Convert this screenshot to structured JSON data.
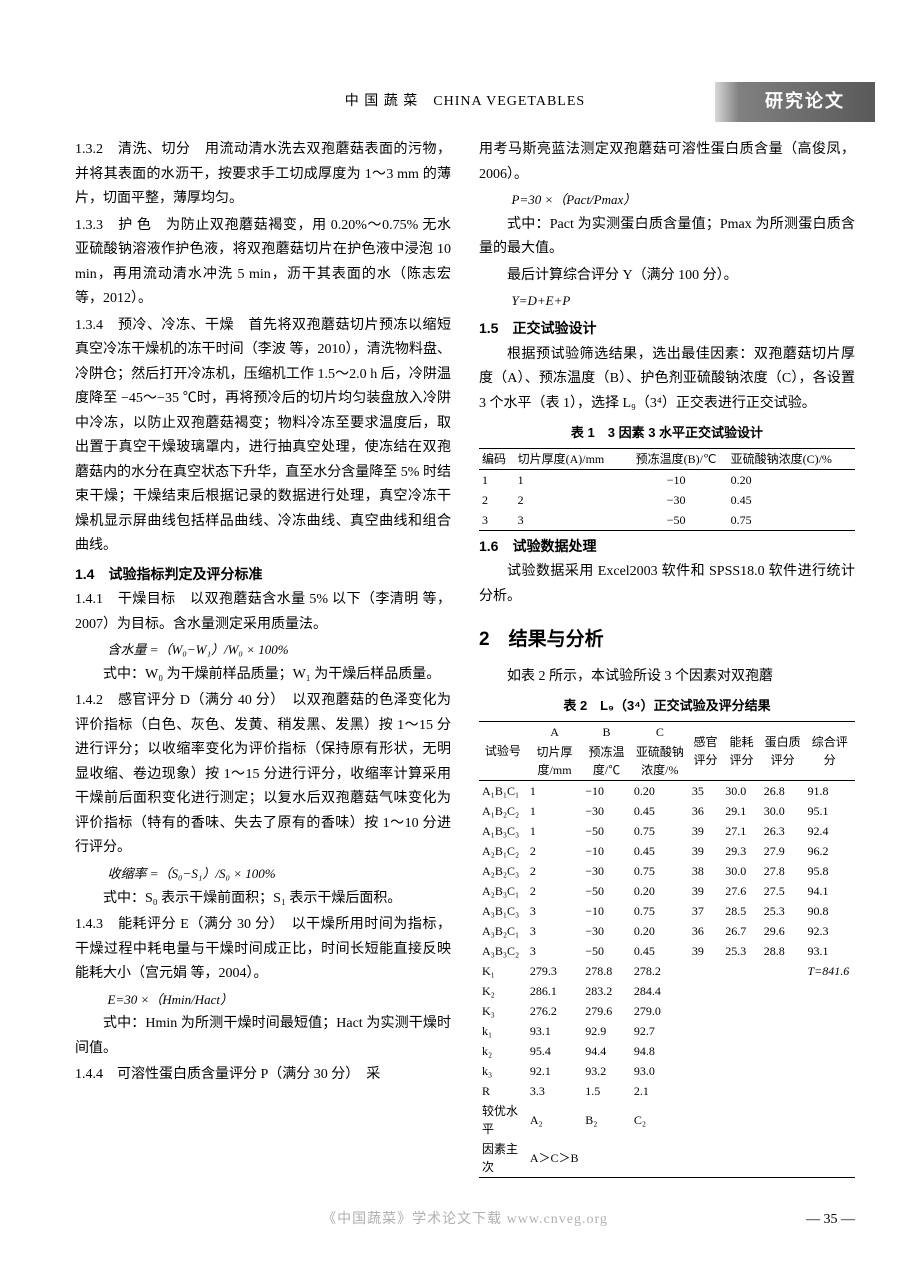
{
  "header": {
    "journal": "中 国 蔬 菜　CHINA VEGETABLES",
    "badge": "研究论文"
  },
  "left": {
    "p1_3_2": "1.3.2　清洗、切分　用流动清水洗去双孢蘑菇表面的污物，并将其表面的水沥干，按要求手工切成厚度为 1～3 mm 的薄片，切面平整，薄厚均匀。",
    "p1_3_3": "1.3.3　护 色　为防止双孢蘑菇褐变，用 0.20%～0.75% 无水亚硫酸钠溶液作护色液，将双孢蘑菇切片在护色液中浸泡 10 min，再用流动清水冲洗 5 min，沥干其表面的水（陈志宏 等，2012）。",
    "p1_3_4": "1.3.4　预冷、冷冻、干燥　首先将双孢蘑菇切片预冻以缩短真空冷冻干燥机的冻干时间（李波 等，2010），清洗物料盘、冷阱仓；然后打开冷冻机，压缩机工作 1.5～2.0 h 后，冷阱温度降至 −45～−35 ℃时，再将预冷后的切片均匀装盘放入冷阱中冷冻，以防止双孢蘑菇褐变；物料冷冻至要求温度后，取出置于真空干燥玻璃罩内，进行抽真空处理，使冻结在双孢蘑菇内的水分在真空状态下升华，直至水分含量降至 5% 时结束干燥；干燥结束后根据记录的数据进行处理，真空冷冻干燥机显示屏曲线包括样品曲线、冷冻曲线、真空曲线和组合曲线。",
    "h1_4": "1.4　试验指标判定及评分标准",
    "p1_4_1a": "1.4.1　干燥目标　以双孢蘑菇含水量 5% 以下（李清明 等，2007）为目标。含水量测定采用质量法。",
    "f1": "含水量 =（W₀−W₁）/W₀ × 100%",
    "p1_4_1b": "式中：W₀ 为干燥前样品质量；W₁ 为干燥后样品质量。",
    "p1_4_2a": "1.4.2　感官评分 D（满分 40 分）　以双孢蘑菇的色泽变化为评价指标（白色、灰色、发黄、稍发黑、发黑）按 1～15 分进行评分；以收缩率变化为评价指标（保持原有形状，无明显收缩、卷边现象）按 1～15 分进行评分，收缩率计算采用干燥前后面积变化进行测定；以复水后双孢蘑菇气味变化为评价指标（特有的香味、失去了原有的香味）按 1～10 分进行评分。",
    "f2": "收缩率 =（S₀−S₁）/S₀ × 100%",
    "p1_4_2b": "式中：S₀ 表示干燥前面积；S₁ 表示干燥后面积。",
    "p1_4_3a": "1.4.3　能耗评分 E（满分 30 分）　以干燥所用时间为指标，干燥过程中耗电量与干燥时间成正比，时间长短能直接反映能耗大小（宫元娟 等，2004）。",
    "f3": "E=30 ×（Hmin/Hact）",
    "p1_4_3b": "式中：Hmin 为所测干燥时间最短值；Hact 为实测干燥时间值。",
    "p1_4_4": "1.4.4　可溶性蛋白质含量评分 P（满分 30 分）　采"
  },
  "right": {
    "p_cont": "用考马斯亮蓝法测定双孢蘑菇可溶性蛋白质含量（高俊凤，2006）。",
    "fP": "P=30 ×（Pact/Pmax）",
    "p_expl": "式中：Pact 为实测蛋白质含量值；Pmax 为所测蛋白质含量的最大值。",
    "p_Y": "最后计算综合评分 Y（满分 100 分）。",
    "fY": "Y=D+E+P",
    "h1_5": "1.5　正交试验设计",
    "p1_5": "根据预试验筛选结果，选出最佳因素：双孢蘑菇切片厚度（A）、预冻温度（B）、护色剂亚硫酸钠浓度（C），各设置 3 个水平（表 1），选择 L₉（3⁴）正交表进行正交试验。",
    "t1_caption": "表 1　3 因素 3 水平正交试验设计",
    "t1": {
      "headers": [
        "编码",
        "切片厚度(A)/mm",
        "预冻温度(B)/℃",
        "亚硫酸钠浓度(C)/%"
      ],
      "rows": [
        [
          "1",
          "1",
          "−10",
          "0.20"
        ],
        [
          "2",
          "2",
          "−30",
          "0.45"
        ],
        [
          "3",
          "3",
          "−50",
          "0.75"
        ]
      ]
    },
    "h1_6": "1.6　试验数据处理",
    "p1_6": "试验数据采用 Excel2003 软件和 SPSS18.0 软件进行统计分析。",
    "h2": "2　结果与分析",
    "p2_intro": "如表 2 所示，本试验所设 3 个因素对双孢蘑",
    "t2_caption": "表 2　L₉（3⁴）正交试验及评分结果",
    "t2": {
      "top_headers": [
        "",
        "A",
        "B",
        "C",
        "",
        "",
        "",
        ""
      ],
      "sub_left": "试验号",
      "sub_headers": [
        "切片厚度/mm",
        "预冻温度/℃",
        "亚硫酸钠浓度/%",
        "感官评分",
        "能耗评分",
        "蛋白质评分",
        "综合评分"
      ],
      "rows": [
        [
          "A₁B₁C₁",
          "1",
          "−10",
          "0.20",
          "35",
          "30.0",
          "26.8",
          "91.8"
        ],
        [
          "A₁B₂C₂",
          "1",
          "−30",
          "0.45",
          "36",
          "29.1",
          "30.0",
          "95.1"
        ],
        [
          "A₁B₃C₃",
          "1",
          "−50",
          "0.75",
          "39",
          "27.1",
          "26.3",
          "92.4"
        ],
        [
          "A₂B₁C₂",
          "2",
          "−10",
          "0.45",
          "39",
          "29.3",
          "27.9",
          "96.2"
        ],
        [
          "A₂B₂C₃",
          "2",
          "−30",
          "0.75",
          "38",
          "30.0",
          "27.8",
          "95.8"
        ],
        [
          "A₂B₃C₁",
          "2",
          "−50",
          "0.20",
          "39",
          "27.6",
          "27.5",
          "94.1"
        ],
        [
          "A₃B₁C₃",
          "3",
          "−10",
          "0.75",
          "37",
          "28.5",
          "25.3",
          "90.8"
        ],
        [
          "A₃B₂C₁",
          "3",
          "−30",
          "0.20",
          "36",
          "26.7",
          "29.6",
          "92.3"
        ],
        [
          "A₃B₃C₂",
          "3",
          "−50",
          "0.45",
          "39",
          "25.3",
          "28.8",
          "93.1"
        ]
      ],
      "stats": [
        [
          "K₁",
          "279.3",
          "278.8",
          "278.2",
          "",
          "",
          "",
          "T=841.6"
        ],
        [
          "K₂",
          "286.1",
          "283.2",
          "284.4",
          "",
          "",
          "",
          ""
        ],
        [
          "K₃",
          "276.2",
          "279.6",
          "279.0",
          "",
          "",
          "",
          ""
        ],
        [
          "k₁",
          "93.1",
          "92.9",
          "92.7",
          "",
          "",
          "",
          ""
        ],
        [
          "k₂",
          "95.4",
          "94.4",
          "94.8",
          "",
          "",
          "",
          ""
        ],
        [
          "k₃",
          "92.1",
          "93.2",
          "93.0",
          "",
          "",
          "",
          ""
        ],
        [
          "R",
          "3.3",
          "1.5",
          "2.1",
          "",
          "",
          "",
          ""
        ],
        [
          "较优水平",
          "A₂",
          "B₂",
          "C₂",
          "",
          "",
          "",
          ""
        ],
        [
          "因素主次",
          "A＞C＞B",
          "",
          "",
          "",
          "",
          "",
          ""
        ]
      ]
    }
  },
  "footer": {
    "center": "《中国蔬菜》学术论文下载 www.cnveg.org",
    "page": "— 35 —"
  }
}
